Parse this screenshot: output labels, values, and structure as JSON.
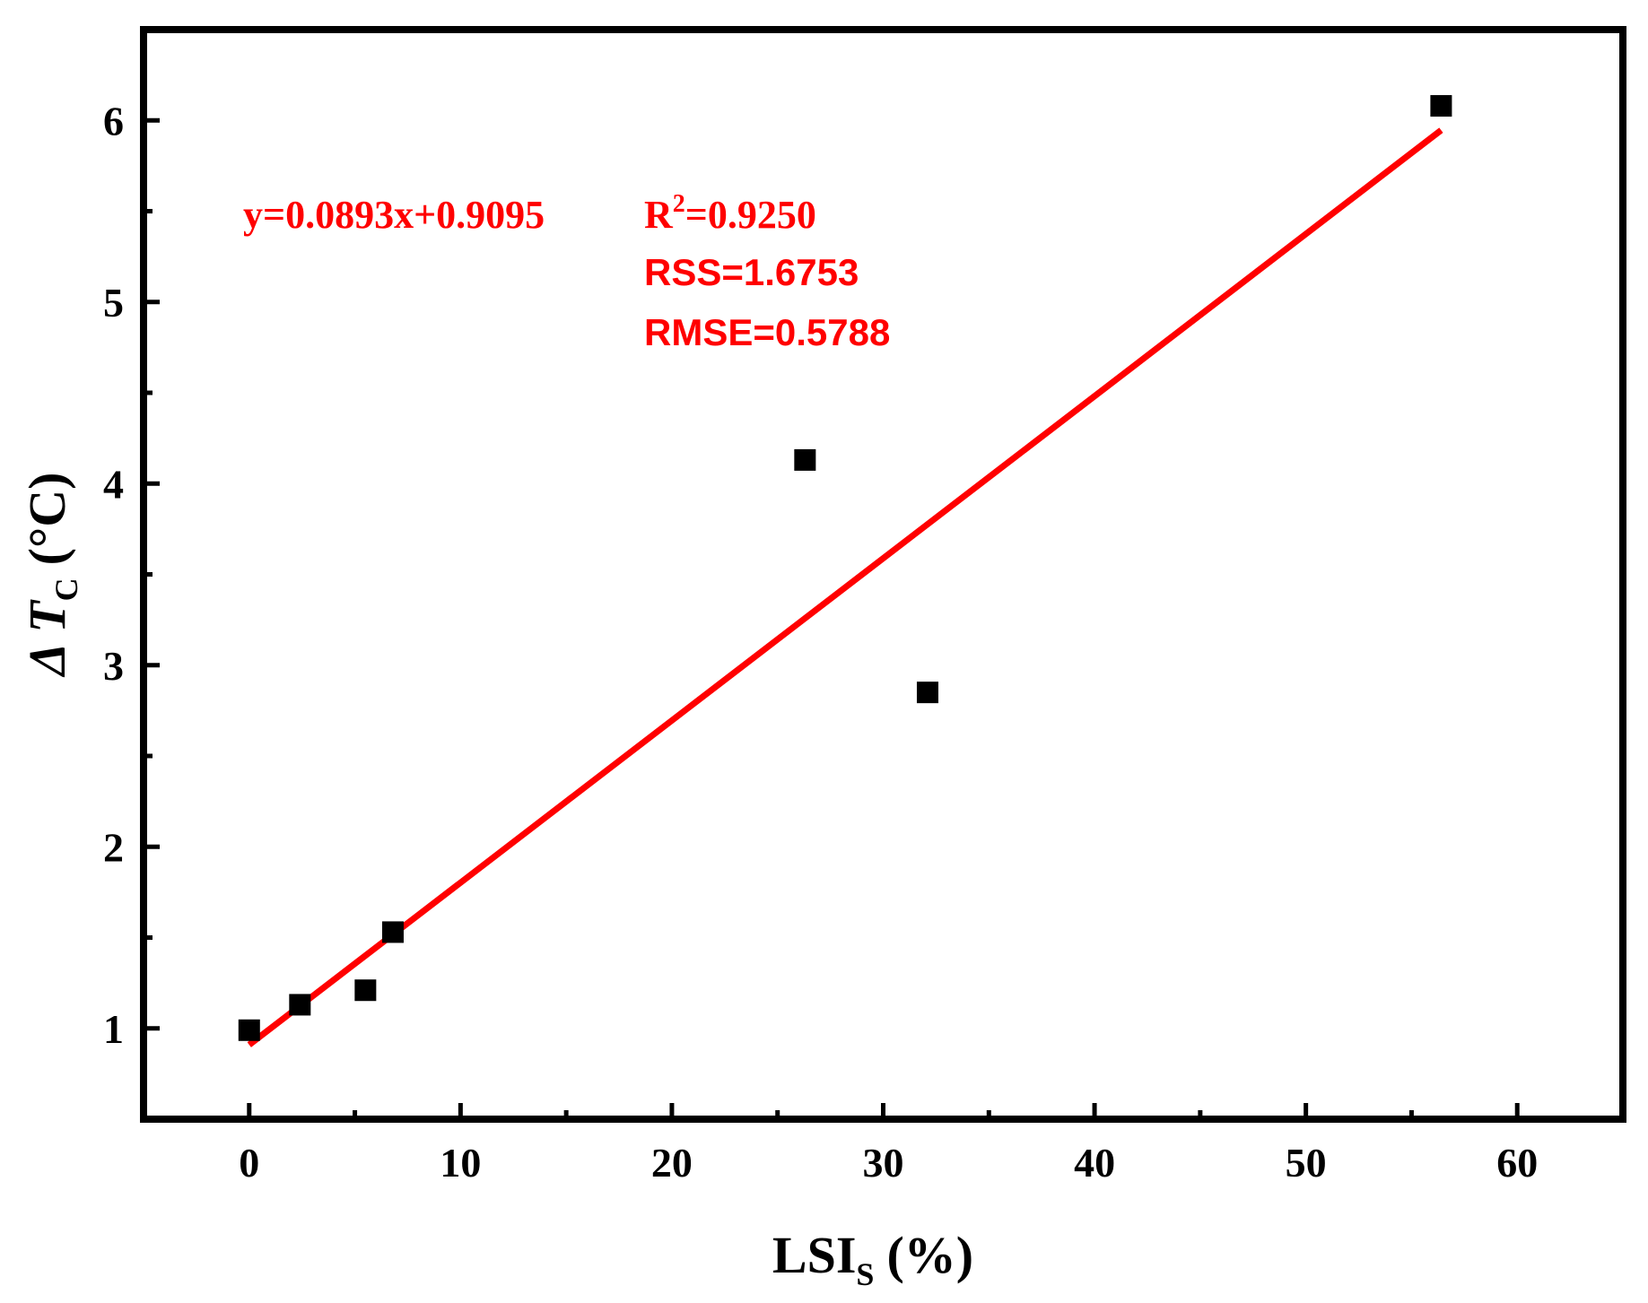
{
  "chart_data": {
    "type": "scatter",
    "x_axis": {
      "label_main": "LSI",
      "label_sub": "S",
      "label_unit": "(%)",
      "range": [
        -5,
        65
      ],
      "major_ticks": [
        0,
        10,
        20,
        30,
        40,
        50,
        60
      ],
      "tick_labels": [
        "0",
        "10",
        "20",
        "30",
        "40",
        "50",
        "60"
      ],
      "minor_ticks": [
        5,
        15,
        25,
        35,
        45,
        55
      ]
    },
    "y_axis": {
      "label_main": "Δ T",
      "label_sub": "C",
      "label_unit": "(°C)",
      "range": [
        0.5,
        6.5
      ],
      "major_ticks": [
        1,
        2,
        3,
        4,
        5,
        6
      ],
      "tick_labels": [
        "1",
        "2",
        "3",
        "4",
        "5",
        "6"
      ],
      "minor_ticks": [
        1.5,
        2.5,
        3.5,
        4.5,
        5.5
      ]
    },
    "grid": false,
    "legend": "none",
    "series": [
      {
        "marker": "square",
        "color": "#000000",
        "points": [
          {
            "x": 0.0,
            "y": 0.99
          },
          {
            "x": 2.4,
            "y": 1.13
          },
          {
            "x": 5.5,
            "y": 1.21
          },
          {
            "x": 6.8,
            "y": 1.53
          },
          {
            "x": 26.3,
            "y": 4.13
          },
          {
            "x": 32.1,
            "y": 2.85
          },
          {
            "x": 56.4,
            "y": 6.08
          }
        ]
      }
    ],
    "fit_line": {
      "slope": 0.0893,
      "intercept": 0.9095,
      "x_start": 0.0,
      "x_end": 56.4,
      "color": "#ff0000"
    },
    "annotations": {
      "equation": "y=0.0893x+0.9095",
      "r2_label": "R",
      "r2_sup": "2",
      "r2_value": "=0.9250",
      "rss": "RSS=1.6753",
      "rmse": "RMSE=0.5788",
      "color": "#ff0000"
    }
  }
}
